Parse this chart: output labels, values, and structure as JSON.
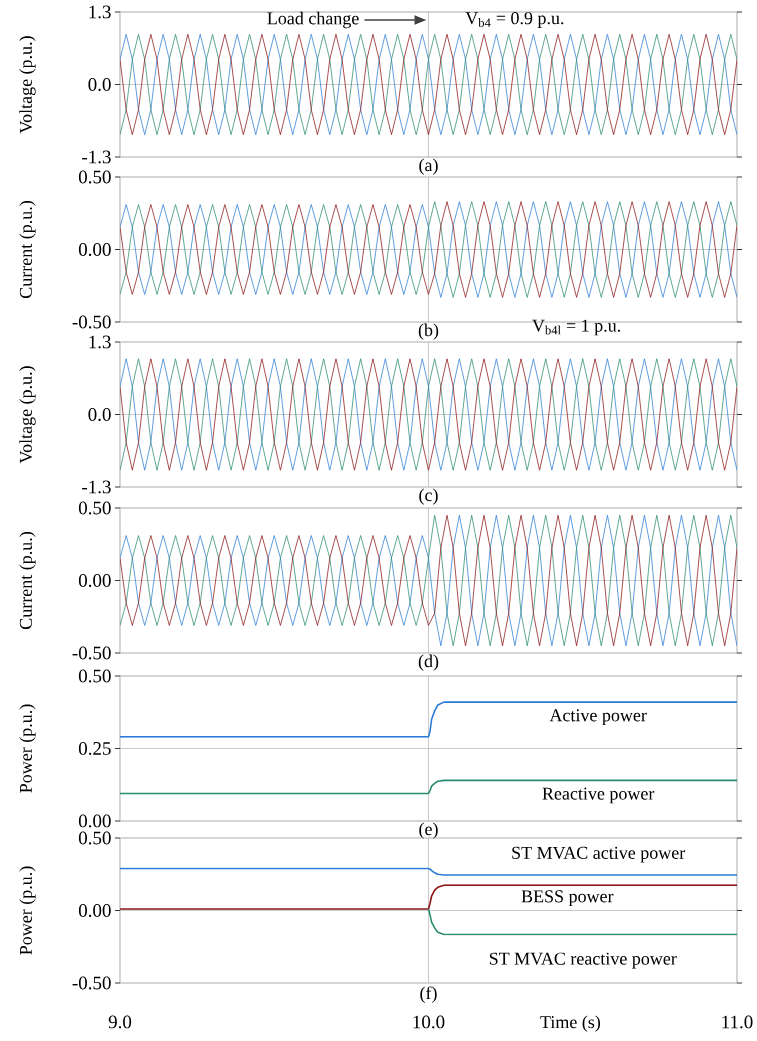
{
  "chart_data": [
    {
      "type": "line",
      "ylabel": "Voltage (p.u.)",
      "xlabel": "(a)",
      "xlim": [
        9,
        11
      ],
      "xticks": [
        9,
        10,
        11
      ],
      "ylim": [
        -1.3,
        1.3
      ],
      "yticks": [
        {
          "value": -1.3,
          "label": "-1.3"
        },
        {
          "value": 0,
          "label": "0.0"
        },
        {
          "value": 1.3,
          "label": "1.3"
        }
      ],
      "grid": true,
      "tick_labels": "y",
      "annotations": [
        "Load change",
        "V$_{b4}$ = 0.9 p.u."
      ],
      "x": [
        9,
        9.02,
        9.04,
        9.06,
        9.08,
        9.1,
        9.12,
        9.14,
        9.16,
        9.18,
        9.2,
        9.22,
        9.24,
        9.26,
        9.28,
        9.3,
        9.32,
        9.34,
        9.36,
        9.38,
        9.4,
        9.42,
        9.44,
        9.46,
        9.48,
        9.5,
        9.52,
        9.54,
        9.56,
        9.58,
        9.6,
        9.62,
        9.64,
        9.66,
        9.68,
        9.7,
        9.72,
        9.74,
        9.76,
        9.78,
        9.8,
        9.82,
        9.84,
        9.86,
        9.88,
        9.9,
        9.92,
        9.94,
        9.96,
        9.98,
        10,
        10.02,
        10.04,
        10.06,
        10.08,
        10.1,
        10.12,
        10.14,
        10.16,
        10.18,
        10.2,
        10.22,
        10.24,
        10.26,
        10.28,
        10.3,
        10.32,
        10.34,
        10.36,
        10.38,
        10.4,
        10.42,
        10.44,
        10.46,
        10.48,
        10.5,
        10.52,
        10.54,
        10.56,
        10.58,
        10.6,
        10.62,
        10.64,
        10.66,
        10.68,
        10.7,
        10.72,
        10.74,
        10.76,
        10.78,
        10.8,
        10.82,
        10.84,
        10.86,
        10.88,
        10.9,
        10.92,
        10.94,
        10.96,
        10.98,
        11
      ],
      "series": [
        {
          "color": "#2b7bd6",
          "values": [
            0.45,
            0.9,
            0.45,
            -0.45,
            -0.9,
            -0.45,
            0.45,
            0.9,
            0.45,
            -0.45,
            -0.9,
            -0.45,
            0.45,
            0.9,
            0.45,
            -0.45,
            -0.9,
            -0.45,
            0.45,
            0.9,
            0.45,
            -0.45,
            -0.9,
            -0.45,
            0.45,
            0.9,
            0.45,
            -0.45,
            -0.9,
            -0.45,
            0.45,
            0.9,
            0.45,
            -0.45,
            -0.9,
            -0.45,
            0.45,
            0.9,
            0.45,
            -0.45,
            -0.9,
            -0.45,
            0.45,
            0.9,
            0.45,
            -0.45,
            -0.9,
            -0.45,
            0.45,
            0.9,
            0.45,
            -0.45,
            -0.9,
            -0.45,
            0.45,
            0.9,
            0.45,
            -0.45,
            -0.9,
            -0.45,
            0.45,
            0.9,
            0.45,
            -0.45,
            -0.9,
            -0.45,
            0.45,
            0.9,
            0.45,
            -0.45,
            -0.9,
            -0.45,
            0.45,
            0.9,
            0.45,
            -0.45,
            -0.9,
            -0.45,
            0.45,
            0.9,
            0.45,
            -0.45,
            -0.9,
            -0.45,
            0.45,
            0.9,
            0.45,
            -0.45,
            -0.9,
            -0.45,
            0.45,
            0.9,
            0.45,
            -0.45,
            -0.9,
            -0.45,
            0.45,
            0.9,
            0.45,
            -0.45,
            -0.9
          ]
        },
        {
          "color": "#2a8a72",
          "values": [
            -0.9,
            -0.45,
            0.45,
            0.9,
            0.45,
            -0.45,
            -0.9,
            -0.45,
            0.45,
            0.9,
            0.45,
            -0.45,
            -0.9,
            -0.45,
            0.45,
            0.9,
            0.45,
            -0.45,
            -0.9,
            -0.45,
            0.45,
            0.9,
            0.45,
            -0.45,
            -0.9,
            -0.45,
            0.45,
            0.9,
            0.45,
            -0.45,
            -0.9,
            -0.45,
            0.45,
            0.9,
            0.45,
            -0.45,
            -0.9,
            -0.45,
            0.45,
            0.9,
            0.45,
            -0.45,
            -0.9,
            -0.45,
            0.45,
            0.9,
            0.45,
            -0.45,
            -0.9,
            -0.45,
            0.45,
            0.9,
            0.45,
            -0.45,
            -0.9,
            -0.45,
            0.45,
            0.9,
            0.45,
            -0.45,
            -0.9,
            -0.45,
            0.45,
            0.9,
            0.45,
            -0.45,
            -0.9,
            -0.45,
            0.45,
            0.9,
            0.45,
            -0.45,
            -0.9,
            -0.45,
            0.45,
            0.9,
            0.45,
            -0.45,
            -0.9,
            -0.45,
            0.45,
            0.9,
            0.45,
            -0.45,
            -0.9,
            -0.45,
            0.45,
            0.9,
            0.45,
            -0.45,
            -0.9,
            -0.45,
            0.45,
            0.9,
            0.45,
            -0.45,
            -0.9,
            -0.45,
            0.45,
            0.9,
            0.45
          ]
        },
        {
          "color": "#8b1414",
          "values": [
            0.45,
            -0.45,
            -0.9,
            -0.45,
            0.45,
            0.9,
            0.45,
            -0.45,
            -0.9,
            -0.45,
            0.45,
            0.9,
            0.45,
            -0.45,
            -0.9,
            -0.45,
            0.45,
            0.9,
            0.45,
            -0.45,
            -0.9,
            -0.45,
            0.45,
            0.9,
            0.45,
            -0.45,
            -0.9,
            -0.45,
            0.45,
            0.9,
            0.45,
            -0.45,
            -0.9,
            -0.45,
            0.45,
            0.9,
            0.45,
            -0.45,
            -0.9,
            -0.45,
            0.45,
            0.9,
            0.45,
            -0.45,
            -0.9,
            -0.45,
            0.45,
            0.9,
            0.45,
            -0.45,
            -0.9,
            -0.45,
            0.45,
            0.9,
            0.45,
            -0.45,
            -0.9,
            -0.45,
            0.45,
            0.9,
            0.45,
            -0.45,
            -0.9,
            -0.45,
            0.45,
            0.9,
            0.45,
            -0.45,
            -0.9,
            -0.45,
            0.45,
            0.9,
            0.45,
            -0.45,
            -0.9,
            -0.45,
            0.45,
            0.9,
            0.45,
            -0.45,
            -0.9,
            -0.45,
            0.45,
            0.9,
            0.45,
            -0.45,
            -0.9,
            -0.45,
            0.45,
            0.9,
            0.45,
            -0.45,
            -0.9,
            -0.45,
            0.45,
            0.9,
            0.45,
            -0.45,
            -0.9,
            -0.45,
            0.45
          ]
        }
      ]
    },
    {
      "type": "line",
      "ylabel": "Current (p.u.)",
      "xlabel": "(b)",
      "xlim": [
        9,
        11
      ],
      "xticks": [
        9,
        10,
        11
      ],
      "ylim": [
        -0.5,
        0.5
      ],
      "yticks": [
        {
          "value": -0.5,
          "label": "-0.50"
        },
        {
          "value": 0,
          "label": "0.00"
        },
        {
          "value": 0.5,
          "label": "0.50"
        }
      ],
      "grid": true,
      "tick_labels": "y",
      "x": [
        9,
        9.02,
        9.04,
        9.06,
        9.08,
        9.1,
        9.12,
        9.14,
        9.16,
        9.18,
        9.2,
        9.22,
        9.24,
        9.26,
        9.28,
        9.3,
        9.32,
        9.34,
        9.36,
        9.38,
        9.4,
        9.42,
        9.44,
        9.46,
        9.48,
        9.5,
        9.52,
        9.54,
        9.56,
        9.58,
        9.6,
        9.62,
        9.64,
        9.66,
        9.68,
        9.7,
        9.72,
        9.74,
        9.76,
        9.78,
        9.8,
        9.82,
        9.84,
        9.86,
        9.88,
        9.9,
        9.92,
        9.94,
        9.96,
        9.98,
        10,
        10.02,
        10.04,
        10.06,
        10.08,
        10.1,
        10.12,
        10.14,
        10.16,
        10.18,
        10.2,
        10.22,
        10.24,
        10.26,
        10.28,
        10.3,
        10.32,
        10.34,
        10.36,
        10.38,
        10.4,
        10.42,
        10.44,
        10.46,
        10.48,
        10.5,
        10.52,
        10.54,
        10.56,
        10.58,
        10.6,
        10.62,
        10.64,
        10.66,
        10.68,
        10.7,
        10.72,
        10.74,
        10.76,
        10.78,
        10.8,
        10.82,
        10.84,
        10.86,
        10.88,
        10.9,
        10.92,
        10.94,
        10.96,
        10.98,
        11
      ],
      "series": [
        {
          "color": "#2b7bd6",
          "values": [
            0.155,
            0.31,
            0.155,
            -0.155,
            -0.31,
            -0.155,
            0.155,
            0.31,
            0.155,
            -0.155,
            -0.31,
            -0.155,
            0.155,
            0.31,
            0.155,
            -0.155,
            -0.31,
            -0.155,
            0.155,
            0.31,
            0.155,
            -0.155,
            -0.31,
            -0.155,
            0.155,
            0.31,
            0.155,
            -0.155,
            -0.31,
            -0.155,
            0.155,
            0.31,
            0.155,
            -0.155,
            -0.31,
            -0.155,
            0.155,
            0.31,
            0.155,
            -0.155,
            -0.31,
            -0.155,
            0.155,
            0.31,
            0.155,
            -0.155,
            -0.31,
            -0.155,
            0.155,
            0.31,
            0.155,
            -0.165,
            -0.33,
            -0.165,
            0.165,
            0.33,
            0.165,
            -0.165,
            -0.33,
            -0.165,
            0.165,
            0.33,
            0.165,
            -0.165,
            -0.33,
            -0.165,
            0.165,
            0.33,
            0.165,
            -0.165,
            -0.33,
            -0.165,
            0.165,
            0.33,
            0.165,
            -0.165,
            -0.33,
            -0.165,
            0.165,
            0.33,
            0.165,
            -0.165,
            -0.33,
            -0.165,
            0.165,
            0.33,
            0.165,
            -0.165,
            -0.33,
            -0.165,
            0.165,
            0.33,
            0.165,
            -0.165,
            -0.33,
            -0.165,
            0.165,
            0.33,
            0.165,
            -0.165,
            -0.33
          ]
        },
        {
          "color": "#2a8a72",
          "values": [
            -0.31,
            -0.155,
            0.155,
            0.31,
            0.155,
            -0.155,
            -0.31,
            -0.155,
            0.155,
            0.31,
            0.155,
            -0.155,
            -0.31,
            -0.155,
            0.155,
            0.31,
            0.155,
            -0.155,
            -0.31,
            -0.155,
            0.155,
            0.31,
            0.155,
            -0.155,
            -0.31,
            -0.155,
            0.155,
            0.31,
            0.155,
            -0.155,
            -0.31,
            -0.155,
            0.155,
            0.31,
            0.155,
            -0.155,
            -0.31,
            -0.155,
            0.155,
            0.31,
            0.155,
            -0.155,
            -0.31,
            -0.155,
            0.155,
            0.31,
            0.155,
            -0.155,
            -0.31,
            -0.155,
            0.155,
            0.33,
            0.165,
            -0.165,
            -0.33,
            -0.165,
            0.165,
            0.33,
            0.165,
            -0.165,
            -0.33,
            -0.165,
            0.165,
            0.33,
            0.165,
            -0.165,
            -0.33,
            -0.165,
            0.165,
            0.33,
            0.165,
            -0.165,
            -0.33,
            -0.165,
            0.165,
            0.33,
            0.165,
            -0.165,
            -0.33,
            -0.165,
            0.165,
            0.33,
            0.165,
            -0.165,
            -0.33,
            -0.165,
            0.165,
            0.33,
            0.165,
            -0.165,
            -0.33,
            -0.165,
            0.165,
            0.33,
            0.165,
            -0.165,
            -0.33,
            -0.165,
            0.165,
            0.33,
            0.165
          ]
        },
        {
          "color": "#8b1414",
          "values": [
            0.155,
            -0.155,
            -0.31,
            -0.155,
            0.155,
            0.31,
            0.155,
            -0.155,
            -0.31,
            -0.155,
            0.155,
            0.31,
            0.155,
            -0.155,
            -0.31,
            -0.155,
            0.155,
            0.31,
            0.155,
            -0.155,
            -0.31,
            -0.155,
            0.155,
            0.31,
            0.155,
            -0.155,
            -0.31,
            -0.155,
            0.155,
            0.31,
            0.155,
            -0.155,
            -0.31,
            -0.155,
            0.155,
            0.31,
            0.155,
            -0.155,
            -0.31,
            -0.155,
            0.155,
            0.31,
            0.155,
            -0.155,
            -0.31,
            -0.155,
            0.155,
            0.31,
            0.155,
            -0.155,
            -0.31,
            -0.165,
            0.165,
            0.33,
            0.165,
            -0.165,
            -0.33,
            -0.165,
            0.165,
            0.33,
            0.165,
            -0.165,
            -0.33,
            -0.165,
            0.165,
            0.33,
            0.165,
            -0.165,
            -0.33,
            -0.165,
            0.165,
            0.33,
            0.165,
            -0.165,
            -0.33,
            -0.165,
            0.165,
            0.33,
            0.165,
            -0.165,
            -0.33,
            -0.165,
            0.165,
            0.33,
            0.165,
            -0.165,
            -0.33,
            -0.165,
            0.165,
            0.33,
            0.165,
            -0.165,
            -0.33,
            -0.165,
            0.165,
            0.33,
            0.165,
            -0.165,
            -0.33,
            -0.165,
            0.165
          ]
        }
      ]
    },
    {
      "type": "line",
      "ylabel": "Voltage (p.u.)",
      "xlabel": "(c)",
      "xlim": [
        9,
        11
      ],
      "xticks": [
        9,
        10,
        11
      ],
      "ylim": [
        -1.3,
        1.3
      ],
      "yticks": [
        {
          "value": -1.3,
          "label": "-1.3"
        },
        {
          "value": 0,
          "label": "0.0"
        },
        {
          "value": 1.3,
          "label": "1.3"
        }
      ],
      "grid": true,
      "tick_labels": "y",
      "annotations": [
        "V$_{b4l}$ = 1 p.u."
      ],
      "x": [
        9,
        9.02,
        9.04,
        9.06,
        9.08,
        9.1,
        9.12,
        9.14,
        9.16,
        9.18,
        9.2,
        9.22,
        9.24,
        9.26,
        9.28,
        9.3,
        9.32,
        9.34,
        9.36,
        9.38,
        9.4,
        9.42,
        9.44,
        9.46,
        9.48,
        9.5,
        9.52,
        9.54,
        9.56,
        9.58,
        9.6,
        9.62,
        9.64,
        9.66,
        9.68,
        9.7,
        9.72,
        9.74,
        9.76,
        9.78,
        9.8,
        9.82,
        9.84,
        9.86,
        9.88,
        9.9,
        9.92,
        9.94,
        9.96,
        9.98,
        10,
        10.02,
        10.04,
        10.06,
        10.08,
        10.1,
        10.12,
        10.14,
        10.16,
        10.18,
        10.2,
        10.22,
        10.24,
        10.26,
        10.28,
        10.3,
        10.32,
        10.34,
        10.36,
        10.38,
        10.4,
        10.42,
        10.44,
        10.46,
        10.48,
        10.5,
        10.52,
        10.54,
        10.56,
        10.58,
        10.6,
        10.62,
        10.64,
        10.66,
        10.68,
        10.7,
        10.72,
        10.74,
        10.76,
        10.78,
        10.8,
        10.82,
        10.84,
        10.86,
        10.88,
        10.9,
        10.92,
        10.94,
        10.96,
        10.98,
        11
      ],
      "series": [
        {
          "color": "#2b7bd6",
          "values": [
            0.5,
            1,
            0.5,
            -0.5,
            -1,
            -0.5,
            0.5,
            1,
            0.5,
            -0.5,
            -1,
            -0.5,
            0.5,
            1,
            0.5,
            -0.5,
            -1,
            -0.5,
            0.5,
            1,
            0.5,
            -0.5,
            -1,
            -0.5,
            0.5,
            1,
            0.5,
            -0.5,
            -1,
            -0.5,
            0.5,
            1,
            0.5,
            -0.5,
            -1,
            -0.5,
            0.5,
            1,
            0.5,
            -0.5,
            -1,
            -0.5,
            0.5,
            1,
            0.5,
            -0.5,
            -1,
            -0.5,
            0.5,
            1,
            0.5,
            -0.5,
            -1,
            -0.5,
            0.5,
            1,
            0.5,
            -0.5,
            -1,
            -0.5,
            0.5,
            1,
            0.5,
            -0.5,
            -1,
            -0.5,
            0.5,
            1,
            0.5,
            -0.5,
            -1,
            -0.5,
            0.5,
            1,
            0.5,
            -0.5,
            -1,
            -0.5,
            0.5,
            1,
            0.5,
            -0.5,
            -1,
            -0.5,
            0.5,
            1,
            0.5,
            -0.5,
            -1,
            -0.5,
            0.5,
            1,
            0.5,
            -0.5,
            -1,
            -0.5,
            0.5,
            1,
            0.5,
            -0.5,
            -1
          ]
        },
        {
          "color": "#2a8a72",
          "values": [
            -1,
            -0.5,
            0.5,
            1,
            0.5,
            -0.5,
            -1,
            -0.5,
            0.5,
            1,
            0.5,
            -0.5,
            -1,
            -0.5,
            0.5,
            1,
            0.5,
            -0.5,
            -1,
            -0.5,
            0.5,
            1,
            0.5,
            -0.5,
            -1,
            -0.5,
            0.5,
            1,
            0.5,
            -0.5,
            -1,
            -0.5,
            0.5,
            1,
            0.5,
            -0.5,
            -1,
            -0.5,
            0.5,
            1,
            0.5,
            -0.5,
            -1,
            -0.5,
            0.5,
            1,
            0.5,
            -0.5,
            -1,
            -0.5,
            0.5,
            1,
            0.5,
            -0.5,
            -1,
            -0.5,
            0.5,
            1,
            0.5,
            -0.5,
            -1,
            -0.5,
            0.5,
            1,
            0.5,
            -0.5,
            -1,
            -0.5,
            0.5,
            1,
            0.5,
            -0.5,
            -1,
            -0.5,
            0.5,
            1,
            0.5,
            -0.5,
            -1,
            -0.5,
            0.5,
            1,
            0.5,
            -0.5,
            -1,
            -0.5,
            0.5,
            1,
            0.5,
            -0.5,
            -1,
            -0.5,
            0.5,
            1,
            0.5,
            -0.5,
            -1,
            -0.5,
            0.5,
            1,
            0.5
          ]
        },
        {
          "color": "#8b1414",
          "values": [
            0.5,
            -0.5,
            -1,
            -0.5,
            0.5,
            1,
            0.5,
            -0.5,
            -1,
            -0.5,
            0.5,
            1,
            0.5,
            -0.5,
            -1,
            -0.5,
            0.5,
            1,
            0.5,
            -0.5,
            -1,
            -0.5,
            0.5,
            1,
            0.5,
            -0.5,
            -1,
            -0.5,
            0.5,
            1,
            0.5,
            -0.5,
            -1,
            -0.5,
            0.5,
            1,
            0.5,
            -0.5,
            -1,
            -0.5,
            0.5,
            1,
            0.5,
            -0.5,
            -1,
            -0.5,
            0.5,
            1,
            0.5,
            -0.5,
            -1,
            -0.5,
            0.5,
            1,
            0.5,
            -0.5,
            -1,
            -0.5,
            0.5,
            1,
            0.5,
            -0.5,
            -1,
            -0.5,
            0.5,
            1,
            0.5,
            -0.5,
            -1,
            -0.5,
            0.5,
            1,
            0.5,
            -0.5,
            -1,
            -0.5,
            0.5,
            1,
            0.5,
            -0.5,
            -1,
            -0.5,
            0.5,
            1,
            0.5,
            -0.5,
            -1,
            -0.5,
            0.5,
            1,
            0.5,
            -0.5,
            -1,
            -0.5,
            0.5,
            1,
            0.5,
            -0.5,
            -1,
            -0.5,
            0.5
          ]
        }
      ]
    },
    {
      "type": "line",
      "ylabel": "Current (p.u.)",
      "xlabel": "(d)",
      "xlim": [
        9,
        11
      ],
      "xticks": [
        9,
        10,
        11
      ],
      "ylim": [
        -0.5,
        0.5
      ],
      "yticks": [
        {
          "value": -0.5,
          "label": "-0.50"
        },
        {
          "value": 0,
          "label": "0.00"
        },
        {
          "value": 0.5,
          "label": "0.50"
        }
      ],
      "grid": true,
      "tick_labels": "y",
      "x": [
        9,
        9.02,
        9.04,
        9.06,
        9.08,
        9.1,
        9.12,
        9.14,
        9.16,
        9.18,
        9.2,
        9.22,
        9.24,
        9.26,
        9.28,
        9.3,
        9.32,
        9.34,
        9.36,
        9.38,
        9.4,
        9.42,
        9.44,
        9.46,
        9.48,
        9.5,
        9.52,
        9.54,
        9.56,
        9.58,
        9.6,
        9.62,
        9.64,
        9.66,
        9.68,
        9.7,
        9.72,
        9.74,
        9.76,
        9.78,
        9.8,
        9.82,
        9.84,
        9.86,
        9.88,
        9.9,
        9.92,
        9.94,
        9.96,
        9.98,
        10,
        10.02,
        10.04,
        10.06,
        10.08,
        10.1,
        10.12,
        10.14,
        10.16,
        10.18,
        10.2,
        10.22,
        10.24,
        10.26,
        10.28,
        10.3,
        10.32,
        10.34,
        10.36,
        10.38,
        10.4,
        10.42,
        10.44,
        10.46,
        10.48,
        10.5,
        10.52,
        10.54,
        10.56,
        10.58,
        10.6,
        10.62,
        10.64,
        10.66,
        10.68,
        10.7,
        10.72,
        10.74,
        10.76,
        10.78,
        10.8,
        10.82,
        10.84,
        10.86,
        10.88,
        10.9,
        10.92,
        10.94,
        10.96,
        10.98,
        11
      ],
      "series": [
        {
          "color": "#2b7bd6",
          "values": [
            0.155,
            0.31,
            0.155,
            -0.155,
            -0.31,
            -0.155,
            0.155,
            0.31,
            0.155,
            -0.155,
            -0.31,
            -0.155,
            0.155,
            0.31,
            0.155,
            -0.155,
            -0.31,
            -0.155,
            0.155,
            0.31,
            0.155,
            -0.155,
            -0.31,
            -0.155,
            0.155,
            0.31,
            0.155,
            -0.155,
            -0.31,
            -0.155,
            0.155,
            0.31,
            0.155,
            -0.155,
            -0.31,
            -0.155,
            0.155,
            0.31,
            0.155,
            -0.155,
            -0.31,
            -0.155,
            0.155,
            0.31,
            0.155,
            -0.155,
            -0.31,
            -0.155,
            0.155,
            0.31,
            0.155,
            -0.225,
            -0.45,
            -0.225,
            0.225,
            0.45,
            0.225,
            -0.225,
            -0.45,
            -0.225,
            0.225,
            0.45,
            0.225,
            -0.225,
            -0.45,
            -0.225,
            0.225,
            0.45,
            0.225,
            -0.225,
            -0.45,
            -0.225,
            0.225,
            0.45,
            0.225,
            -0.225,
            -0.45,
            -0.225,
            0.225,
            0.45,
            0.225,
            -0.225,
            -0.45,
            -0.225,
            0.225,
            0.45,
            0.225,
            -0.225,
            -0.45,
            -0.225,
            0.225,
            0.45,
            0.225,
            -0.225,
            -0.45,
            -0.225,
            0.225,
            0.45,
            0.225,
            -0.225,
            -0.45
          ]
        },
        {
          "color": "#2a8a72",
          "values": [
            -0.31,
            -0.155,
            0.155,
            0.31,
            0.155,
            -0.155,
            -0.31,
            -0.155,
            0.155,
            0.31,
            0.155,
            -0.155,
            -0.31,
            -0.155,
            0.155,
            0.31,
            0.155,
            -0.155,
            -0.31,
            -0.155,
            0.155,
            0.31,
            0.155,
            -0.155,
            -0.31,
            -0.155,
            0.155,
            0.31,
            0.155,
            -0.155,
            -0.31,
            -0.155,
            0.155,
            0.31,
            0.155,
            -0.155,
            -0.31,
            -0.155,
            0.155,
            0.31,
            0.155,
            -0.155,
            -0.31,
            -0.155,
            0.155,
            0.31,
            0.155,
            -0.155,
            -0.31,
            -0.155,
            0.155,
            0.45,
            0.225,
            -0.225,
            -0.45,
            -0.225,
            0.225,
            0.45,
            0.225,
            -0.225,
            -0.45,
            -0.225,
            0.225,
            0.45,
            0.225,
            -0.225,
            -0.45,
            -0.225,
            0.225,
            0.45,
            0.225,
            -0.225,
            -0.45,
            -0.225,
            0.225,
            0.45,
            0.225,
            -0.225,
            -0.45,
            -0.225,
            0.225,
            0.45,
            0.225,
            -0.225,
            -0.45,
            -0.225,
            0.225,
            0.45,
            0.225,
            -0.225,
            -0.45,
            -0.225,
            0.225,
            0.45,
            0.225,
            -0.225,
            -0.45,
            -0.225,
            0.225,
            0.45,
            0.225
          ]
        },
        {
          "color": "#8b1414",
          "values": [
            0.155,
            -0.155,
            -0.31,
            -0.155,
            0.155,
            0.31,
            0.155,
            -0.155,
            -0.31,
            -0.155,
            0.155,
            0.31,
            0.155,
            -0.155,
            -0.31,
            -0.155,
            0.155,
            0.31,
            0.155,
            -0.155,
            -0.31,
            -0.155,
            0.155,
            0.31,
            0.155,
            -0.155,
            -0.31,
            -0.155,
            0.155,
            0.31,
            0.155,
            -0.155,
            -0.31,
            -0.155,
            0.155,
            0.31,
            0.155,
            -0.155,
            -0.31,
            -0.155,
            0.155,
            0.31,
            0.155,
            -0.155,
            -0.31,
            -0.155,
            0.155,
            0.31,
            0.155,
            -0.155,
            -0.31,
            -0.225,
            0.225,
            0.45,
            0.225,
            -0.225,
            -0.45,
            -0.225,
            0.225,
            0.45,
            0.225,
            -0.225,
            -0.45,
            -0.225,
            0.225,
            0.45,
            0.225,
            -0.225,
            -0.45,
            -0.225,
            0.225,
            0.45,
            0.225,
            -0.225,
            -0.45,
            -0.225,
            0.225,
            0.45,
            0.225,
            -0.225,
            -0.45,
            -0.225,
            0.225,
            0.45,
            0.225,
            -0.225,
            -0.45,
            -0.225,
            0.225,
            0.45,
            0.225,
            -0.225,
            -0.45,
            -0.225,
            0.225,
            0.45,
            0.225,
            -0.225,
            -0.45,
            -0.225,
            0.225
          ]
        }
      ]
    },
    {
      "type": "line",
      "ylabel": "Power (p.u.)",
      "xlabel": "(e)",
      "xlim": [
        9,
        11
      ],
      "xticks": [
        9,
        10,
        11
      ],
      "ylim": [
        0,
        0.5
      ],
      "yticks": [
        {
          "value": 0,
          "label": "0.00"
        },
        {
          "value": 0.25,
          "label": "0.25"
        },
        {
          "value": 0.5,
          "label": "0.50"
        }
      ],
      "grid": true,
      "tick_labels": "y",
      "x": [
        9,
        9.5,
        10,
        10.005,
        10.01,
        10.02,
        10.03,
        10.05,
        10.1,
        10.5,
        11
      ],
      "series": [
        {
          "name": "Active power",
          "color": "#2b7bd6",
          "values": [
            0.29,
            0.29,
            0.29,
            0.31,
            0.35,
            0.38,
            0.4,
            0.41,
            0.41,
            0.41,
            0.41
          ]
        },
        {
          "name": "Reactive power",
          "color": "#2a8a72",
          "values": [
            0.095,
            0.095,
            0.095,
            0.105,
            0.12,
            0.13,
            0.137,
            0.14,
            0.14,
            0.14,
            0.14
          ]
        }
      ]
    },
    {
      "type": "line",
      "ylabel": "Power (p.u.)",
      "xlabel": "Time (s)",
      "xlim": [
        9,
        11
      ],
      "xticks": [
        {
          "value": 9,
          "label": "9.0"
        },
        {
          "value": 10,
          "label": "10.0"
        },
        {
          "value": 11,
          "label": "11.0"
        }
      ],
      "ylim": [
        -0.5,
        0.5
      ],
      "yticks": [
        {
          "value": -0.5,
          "label": "-0.50"
        },
        {
          "value": 0,
          "label": "0.00"
        },
        {
          "value": 0.5,
          "label": "0.50"
        }
      ],
      "grid": true,
      "annotations": [
        "(f)"
      ],
      "x": [
        9,
        9.5,
        10,
        10.005,
        10.01,
        10.02,
        10.03,
        10.05,
        10.1,
        10.5,
        11
      ],
      "series": [
        {
          "name": "ST MVAC active power",
          "color": "#2b7bd6",
          "values": [
            0.29,
            0.29,
            0.29,
            0.285,
            0.275,
            0.26,
            0.25,
            0.245,
            0.245,
            0.245,
            0.245
          ]
        },
        {
          "name": "BESS power",
          "color": "#8b1414",
          "values": [
            0.01,
            0.01,
            0.01,
            0.05,
            0.1,
            0.14,
            0.16,
            0.175,
            0.175,
            0.175,
            0.175
          ]
        },
        {
          "name": "ST MVAC reactive power",
          "color": "#2a8a72",
          "values": [
            null,
            null,
            0.01,
            -0.03,
            -0.08,
            -0.12,
            -0.15,
            -0.165,
            -0.165,
            -0.165,
            -0.165
          ]
        }
      ]
    }
  ]
}
